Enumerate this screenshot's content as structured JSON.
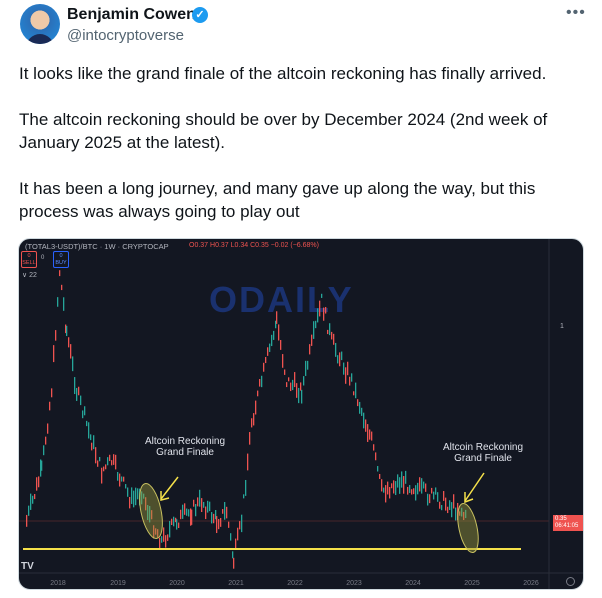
{
  "author": {
    "name": "Benjamin Cowen",
    "handle": "@intocryptoverse",
    "verified": true
  },
  "menu_icon": "more-horizontal-icon",
  "tweet_lines": [
    "It looks like the grand finale of the altcoin reckoning has finally arrived.",
    "The altcoin reckoning should be over by December 2024 (2nd week of",
    "January 2025 at the latest).",
    "It has been a long journey, and many gave up along the way, but this",
    "process was always going to play out"
  ],
  "chart": {
    "symbol": "(TOTAL3-USDT)/BTC · 1W · CRYPTOCAP",
    "ohlc": "O0.37 H0.37 L0.34 C0.35 −0.02 (−6.68%)",
    "sell": {
      "value": "0",
      "label": "SELL"
    },
    "buy": {
      "value": "0",
      "label": "BUY"
    },
    "spread": "0",
    "indicator": "∨ 22",
    "price_axis_label": "1",
    "last_price": "0.35",
    "countdown": "06:41:05",
    "watermark": "ODAILY",
    "tv_logo": "TV",
    "years": [
      "2018",
      "2019",
      "2020",
      "2021",
      "2022",
      "2023",
      "2024",
      "2025",
      "2026"
    ],
    "annotation_left": [
      "Altcoin Reckoning",
      "Grand Finale"
    ],
    "annotation_right": [
      "Altcoin Reckoning",
      "Grand Finale"
    ],
    "colors": {
      "bg": "#131722",
      "up": "#26a69a",
      "down": "#ef5350",
      "support": "#f5e14a"
    }
  }
}
